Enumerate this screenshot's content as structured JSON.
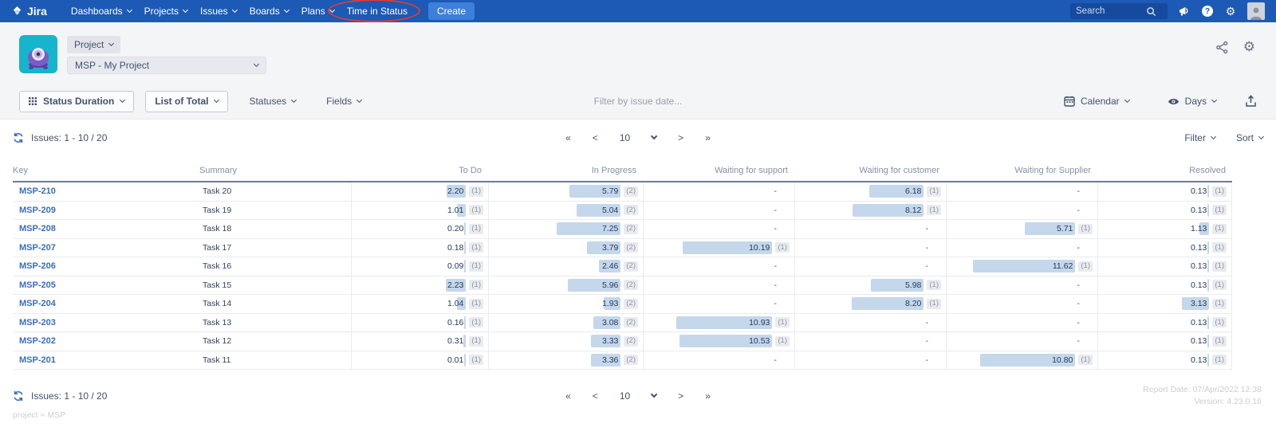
{
  "nav": {
    "logo": "Jira",
    "items": [
      {
        "label": "Dashboards",
        "chevron": true
      },
      {
        "label": "Projects",
        "chevron": true
      },
      {
        "label": "Issues",
        "chevron": true
      },
      {
        "label": "Boards",
        "chevron": true
      },
      {
        "label": "Plans",
        "chevron": true
      },
      {
        "label": "Time in Status",
        "chevron": false,
        "annotated": true
      }
    ],
    "create_label": "Create",
    "search_placeholder": "Search"
  },
  "header": {
    "project_button": "Project",
    "project_select": "MSP - My Project"
  },
  "toolbar": {
    "status_duration": "Status Duration",
    "list_of_total": "List of Total",
    "statuses": "Statuses",
    "fields": "Fields",
    "filter_by_date": "Filter by issue date...",
    "calendar": "Calendar",
    "days": "Days"
  },
  "issues_bar": {
    "label": "Issues: 1 - 10 / 20",
    "filter": "Filter",
    "sort": "Sort"
  },
  "pagination": {
    "first": "«",
    "prev": "<",
    "page": "10",
    "next": ">",
    "last": "»"
  },
  "table": {
    "columns": [
      "Key",
      "Summary",
      "To Do",
      "In Progress",
      "Waiting for support",
      "Waiting for customer",
      "Waiting for Supplier",
      "Resolved"
    ],
    "rows": [
      {
        "key": "MSP-210",
        "summary": "Task 20",
        "values": [
          {
            "v": 2.2,
            "c": 1
          },
          {
            "v": 5.79,
            "c": 2
          },
          null,
          {
            "v": 6.18,
            "c": 1
          },
          null,
          {
            "v": 0.13,
            "c": 1
          }
        ]
      },
      {
        "key": "MSP-209",
        "summary": "Task 19",
        "values": [
          {
            "v": 1.01,
            "c": 1
          },
          {
            "v": 5.04,
            "c": 2
          },
          null,
          {
            "v": 8.12,
            "c": 1
          },
          null,
          {
            "v": 0.13,
            "c": 1
          }
        ]
      },
      {
        "key": "MSP-208",
        "summary": "Task 18",
        "values": [
          {
            "v": 0.2,
            "c": 1
          },
          {
            "v": 7.25,
            "c": 2
          },
          null,
          null,
          {
            "v": 5.71,
            "c": 1
          },
          {
            "v": 1.13,
            "c": 1
          }
        ]
      },
      {
        "key": "MSP-207",
        "summary": "Task 17",
        "values": [
          {
            "v": 0.18,
            "c": 1
          },
          {
            "v": 3.79,
            "c": 2
          },
          {
            "v": 10.19,
            "c": 1
          },
          null,
          null,
          {
            "v": 0.13,
            "c": 1
          }
        ]
      },
      {
        "key": "MSP-206",
        "summary": "Task 16",
        "values": [
          {
            "v": 0.09,
            "c": 1
          },
          {
            "v": 2.46,
            "c": 2
          },
          null,
          null,
          {
            "v": 11.62,
            "c": 1
          },
          {
            "v": 0.13,
            "c": 1
          }
        ]
      },
      {
        "key": "MSP-205",
        "summary": "Task 15",
        "values": [
          {
            "v": 2.23,
            "c": 1
          },
          {
            "v": 5.96,
            "c": 2
          },
          null,
          {
            "v": 5.98,
            "c": 1
          },
          null,
          {
            "v": 0.13,
            "c": 1
          }
        ]
      },
      {
        "key": "MSP-204",
        "summary": "Task 14",
        "values": [
          {
            "v": 1.04,
            "c": 1
          },
          {
            "v": 1.93,
            "c": 2
          },
          null,
          {
            "v": 8.2,
            "c": 1
          },
          null,
          {
            "v": 3.13,
            "c": 1
          }
        ]
      },
      {
        "key": "MSP-203",
        "summary": "Task 13",
        "values": [
          {
            "v": 0.16,
            "c": 1
          },
          {
            "v": 3.08,
            "c": 2
          },
          {
            "v": 10.93,
            "c": 1
          },
          null,
          null,
          {
            "v": 0.13,
            "c": 1
          }
        ]
      },
      {
        "key": "MSP-202",
        "summary": "Task 12",
        "values": [
          {
            "v": 0.31,
            "c": 1
          },
          {
            "v": 3.33,
            "c": 2
          },
          {
            "v": 10.53,
            "c": 1
          },
          null,
          null,
          {
            "v": 0.13,
            "c": 1
          }
        ]
      },
      {
        "key": "MSP-201",
        "summary": "Task 11",
        "values": [
          {
            "v": 0.01,
            "c": 1
          },
          {
            "v": 3.36,
            "c": 2
          },
          null,
          null,
          {
            "v": 10.8,
            "c": 1
          },
          {
            "v": 0.13,
            "c": 1
          }
        ]
      }
    ],
    "empty_cell": "-"
  },
  "footer": {
    "report_date": "Report Date: 07/Apr/2022 12:38",
    "version": "Version: 4.23.0.16",
    "query": "project = MSP"
  },
  "colors": {
    "nav_blue": "#1c5ab6",
    "create_blue": "#3d7fdb",
    "bar_fill": "#c5d7eb",
    "link_blue": "#3a6dbf",
    "annotation_red": "#e23b30",
    "band_gray": "#f4f5f7"
  }
}
